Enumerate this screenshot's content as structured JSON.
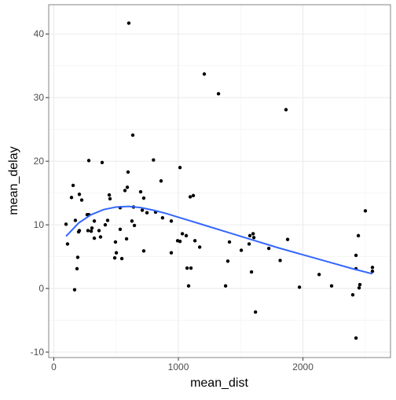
{
  "chart_data": {
    "type": "scatter",
    "xlabel": "mean_dist",
    "ylabel": "mean_delay",
    "xlim": [
      -41,
      2703
    ],
    "ylim": [
      -10.86,
      44.6
    ],
    "xticks": [
      0,
      1000,
      2000
    ],
    "yticks": [
      -10,
      0,
      10,
      20,
      30,
      40
    ],
    "xminor": [
      500,
      1500,
      2500
    ],
    "yminor": [
      -5,
      5,
      15,
      25,
      35
    ],
    "grid": true,
    "points": {
      "color": "#000000",
      "x": [
        602,
        1208,
        1322,
        1864,
        634,
        281,
        388,
        800,
        1013,
        596,
        861,
        155,
        205,
        142,
        224,
        445,
        451,
        571,
        590,
        697,
        722,
        1120,
        1095,
        533,
        640,
        710,
        748,
        817,
        268,
        281,
        173,
        98,
        325,
        413,
        432,
        627,
        647,
        873,
        943,
        1032,
        205,
        274,
        306,
        300,
        363,
        375,
        533,
        199,
        325,
        584,
        495,
        110,
        994,
        1013,
        1063,
        1133,
        1171,
        1574,
        1600,
        1606,
        1568,
        1410,
        1505,
        1726,
        1877,
        722,
        943,
        502,
        489,
        546,
        1397,
        1817,
        1070,
        1101,
        192,
        186,
        1587,
        2130,
        1082,
        1379,
        1972,
        2230,
        167,
        2451,
        2457,
        2400,
        1619,
        2426,
        2501,
        2445,
        2426,
        2426,
        2558,
        2558
      ],
      "y": [
        41.7,
        33.7,
        30.6,
        28.1,
        24.1,
        20.1,
        19.8,
        20.2,
        19.0,
        18.3,
        16.9,
        16.2,
        14.8,
        14.3,
        13.9,
        14.7,
        14.1,
        15.4,
        15.9,
        15.2,
        14.2,
        14.6,
        14.4,
        12.7,
        12.8,
        12.3,
        11.9,
        12.0,
        11.6,
        11.6,
        10.7,
        10.1,
        10.6,
        10.0,
        10.7,
        10.6,
        9.9,
        11.1,
        10.6,
        8.6,
        9.1,
        9.1,
        9.5,
        9.0,
        9.1,
        8.1,
        9.3,
        8.9,
        7.9,
        7.8,
        7.3,
        7.0,
        7.5,
        7.4,
        8.3,
        7.5,
        6.5,
        8.3,
        8.6,
        8.0,
        7.0,
        7.3,
        6.0,
        6.3,
        7.7,
        5.9,
        5.6,
        5.6,
        4.8,
        4.7,
        4.3,
        4.4,
        3.2,
        3.2,
        4.9,
        3.1,
        2.6,
        2.2,
        0.4,
        0.4,
        0.2,
        0.4,
        -0.2,
        0.1,
        0.6,
        -1.0,
        -3.7,
        -7.8,
        12.2,
        8.3,
        5.2,
        3.1,
        3.3,
        2.7
      ]
    },
    "smooth": {
      "color": "#3366ff",
      "x": [
        98,
        200,
        300,
        400,
        500,
        600,
        700,
        800,
        900,
        1000,
        1200,
        1400,
        1600,
        1800,
        2000,
        2200,
        2400,
        2558
      ],
      "y": [
        8.2,
        10.3,
        11.6,
        12.4,
        12.8,
        12.9,
        12.7,
        12.3,
        11.8,
        11.2,
        10.0,
        8.8,
        7.6,
        6.4,
        5.3,
        4.2,
        3.1,
        2.3
      ]
    }
  }
}
